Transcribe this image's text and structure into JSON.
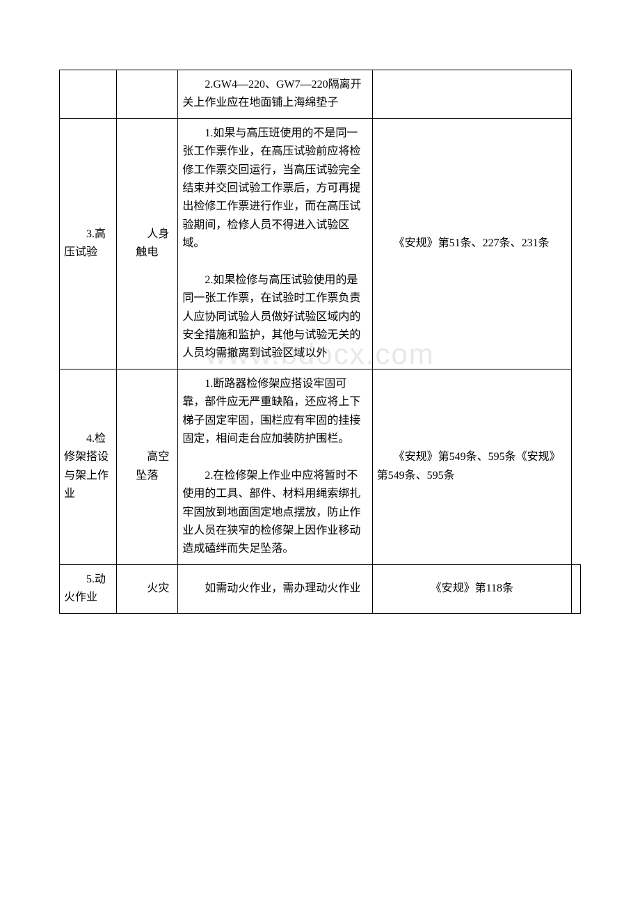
{
  "watermark": "www.bdocx.com",
  "table": {
    "rows": [
      {
        "col1": "",
        "col2": "",
        "col3": "　　2.GW4—220、GW7—220隔离开关上作业应在地面铺上海绵垫子",
        "col4": ""
      },
      {
        "col1": "　　3.高压试验",
        "col2": "　　人身触电",
        "col3_p1": "　　1.如果与高压班使用的不是同一张工作票作业，在高压试验前应将检修工作票交回运行，当高压试验完全结束并交回试验工作票后，方可再提出检修工作票进行作业，而在高压试验期间，检修人员不得进入试验区域。",
        "col3_p2": "　　2.如果检修与高压试验使用的是同一张工作票，在试验时工作票负责人应协同试验人员做好试验区域内的安全措施和监护，其他与试验无关的人员均需撤离到试验区域以外",
        "col4": "　　《安规》第51条、227条、231条"
      },
      {
        "col1": "　　4.检修架搭设与架上作业",
        "col2": "　　高空坠落",
        "col3_p1": "　　1.断路器检修架应搭设牢固可靠，部件应无严重缺陷，还应将上下梯子固定牢固，围栏应有牢固的挂接固定，相间走台应加装防护围栏。",
        "col3_p2": "　　2.在检修架上作业中应将暂时不使用的工具、部件、材料用绳索绑扎牢固放到地面固定地点摆放，防止作业人员在狭窄的检修架上因作业移动造成磕绊而失足坠落。",
        "col4": "　　《安规》第549条、595条《安规》第549条、595条"
      },
      {
        "col1": "　　5.动火作业",
        "col2": "　　火灾",
        "col3": "　　如需动火作业，需办理动火作业",
        "col4": "《安规》第118条",
        "col5": ""
      }
    ]
  }
}
